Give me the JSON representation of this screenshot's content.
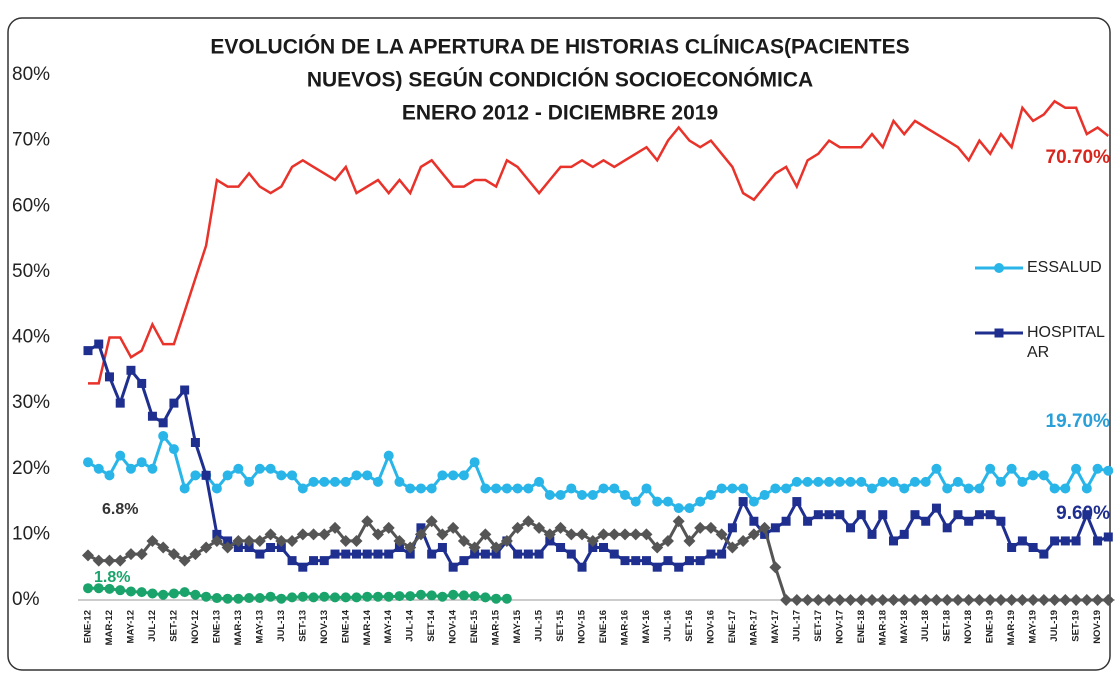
{
  "chart_data": {
    "type": "line",
    "title": [
      "EVOLUCIÓN DE LA APERTURA DE HISTORIAS CLÍNICAS(PACIENTES",
      "NUEVOS) SEGÚN CONDICIÓN SOCIOECONÓMICA",
      "ENERO 2012 -    DICIEMBRE 2019"
    ],
    "categories": [
      "ENE-12",
      null,
      "MAR-12",
      null,
      "MAY-12",
      null,
      "JUL-12",
      null,
      "SET-12",
      null,
      "NOV-12",
      null,
      "ENE-13",
      null,
      "MAR-13",
      null,
      "MAY-13",
      null,
      "JUL-13",
      null,
      "SET-13",
      null,
      "NOV-13",
      null,
      "ENE-14",
      null,
      "MAR-14",
      null,
      "MAY-14",
      null,
      "JUL-14",
      null,
      "SET-14",
      null,
      "NOV-14",
      null,
      "ENE-15",
      null,
      "MAR-15",
      null,
      "MAY-15",
      null,
      "JUL-15",
      null,
      "SET-15",
      null,
      "NOV-15",
      null,
      "ENE-16",
      null,
      "MAR-16",
      null,
      "MAY-16",
      null,
      "JUL-16",
      null,
      "SET-16",
      null,
      "NOV-16",
      null,
      "ENE-17",
      null,
      "MAR-17",
      null,
      "MAY-17",
      null,
      "JUL-17",
      null,
      "SET-17",
      null,
      "NOV-17",
      null,
      "ENE-18",
      null,
      "MAR-18",
      null,
      "MAY-18",
      null,
      "JUL-18",
      null,
      "SET-18",
      null,
      "NOV-18",
      null,
      "ENE-19",
      null,
      "MAR-19",
      null,
      "MAY-19",
      null,
      "JUL-19",
      null,
      "SET-19",
      null,
      "NOV-19",
      null
    ],
    "series": [
      {
        "color": "#e8322a",
        "marker": "none",
        "values": [
          33,
          33,
          40,
          40,
          37,
          38,
          42,
          39,
          39,
          44,
          49,
          54,
          64,
          63,
          63,
          65,
          63,
          62,
          63,
          66,
          67,
          66,
          65,
          64,
          66,
          62,
          63,
          64,
          62,
          64,
          62,
          66,
          67,
          65,
          63,
          63,
          64,
          64,
          63,
          67,
          66,
          64,
          62,
          64,
          66,
          66,
          67,
          66,
          67,
          66,
          67,
          68,
          69,
          67,
          70,
          72,
          70,
          69,
          70,
          68,
          66,
          62,
          61,
          63,
          65,
          66,
          63,
          67,
          68,
          70,
          69,
          69,
          69,
          71,
          69,
          73,
          71,
          73,
          72,
          71,
          70,
          69,
          67,
          70,
          68,
          71,
          69,
          75,
          73,
          74,
          76,
          75,
          75,
          71,
          72,
          70.7
        ]
      },
      {
        "name": "ESSALUD",
        "color": "#29b5e8",
        "marker": "circle",
        "values": [
          21,
          20,
          19,
          22,
          20,
          21,
          20,
          25,
          23,
          17,
          19,
          19,
          17,
          19,
          20,
          18,
          20,
          20,
          19,
          19,
          17,
          18,
          18,
          18,
          18,
          19,
          19,
          18,
          22,
          18,
          17,
          17,
          17,
          19,
          19,
          19,
          21,
          17,
          17,
          17,
          17,
          17,
          18,
          16,
          16,
          17,
          16,
          16,
          17,
          17,
          16,
          15,
          17,
          15,
          15,
          14,
          14,
          15,
          16,
          17,
          17,
          17,
          15,
          16,
          17,
          17,
          18,
          18,
          18,
          18,
          18,
          18,
          18,
          17,
          18,
          18,
          17,
          18,
          18,
          20,
          17,
          18,
          17,
          17,
          20,
          18,
          20,
          18,
          19,
          19,
          17,
          17,
          20,
          17,
          20,
          19.7
        ]
      },
      {
        "name": "HOSPITAL AR",
        "color": "#1f2f8f",
        "marker": "square",
        "values": [
          38,
          39,
          34,
          30,
          35,
          33,
          28,
          27,
          30,
          32,
          24,
          19,
          10,
          9,
          8,
          8,
          7,
          8,
          8,
          6,
          5,
          6,
          6,
          7,
          7,
          7,
          7,
          7,
          7,
          8,
          7,
          11,
          7,
          8,
          5,
          6,
          7,
          7,
          7,
          9,
          7,
          7,
          7,
          9,
          8,
          7,
          5,
          8,
          8,
          7,
          6,
          6,
          6,
          5,
          6,
          5,
          6,
          6,
          7,
          7,
          11,
          15,
          12,
          10,
          11,
          12,
          15,
          12,
          13,
          13,
          13,
          11,
          13,
          10,
          13,
          9,
          10,
          13,
          12,
          14,
          11,
          13,
          12,
          13,
          13,
          12,
          8,
          9,
          8,
          7,
          9,
          9,
          9,
          13,
          9,
          9.6
        ]
      },
      {
        "color": "#555555",
        "marker": "diamond",
        "values": [
          6.8,
          6,
          6,
          6,
          7,
          7,
          9,
          8,
          7,
          6,
          7,
          8,
          9,
          8,
          9,
          9,
          9,
          10,
          9,
          9,
          10,
          10,
          10,
          11,
          9,
          9,
          12,
          10,
          11,
          9,
          8,
          10,
          12,
          10,
          11,
          9,
          8,
          10,
          8,
          9,
          11,
          12,
          11,
          10,
          11,
          10,
          10,
          9,
          10,
          10,
          10,
          10,
          10,
          8,
          9,
          12,
          9,
          11,
          11,
          10,
          8,
          9,
          10,
          11,
          5,
          0,
          0,
          0,
          0,
          0,
          0,
          0,
          0,
          0,
          0,
          0,
          0,
          0,
          0,
          0,
          0,
          0,
          0,
          0,
          0,
          0,
          0,
          0,
          0,
          0,
          0,
          0,
          0,
          0,
          0,
          0
        ]
      },
      {
        "color": "#1aa36b",
        "marker": "circle",
        "values": [
          1.8,
          1.8,
          1.7,
          1.5,
          1.3,
          1.2,
          1,
          0.8,
          1,
          1.2,
          0.8,
          0.5,
          0.3,
          0.2,
          0.2,
          0.3,
          0.3,
          0.5,
          0.2,
          0.4,
          0.5,
          0.4,
          0.5,
          0.4,
          0.4,
          0.4,
          0.5,
          0.5,
          0.5,
          0.6,
          0.6,
          0.8,
          0.7,
          0.5,
          0.8,
          0.7,
          0.6,
          0.4,
          0.2,
          0.2,
          null,
          null,
          null,
          null,
          null,
          null,
          null,
          null,
          null,
          null,
          null,
          null,
          null,
          null,
          null,
          null,
          null,
          null,
          null,
          null,
          null,
          null,
          null,
          null,
          null,
          null,
          null,
          null,
          null,
          null,
          null,
          null,
          null,
          null,
          null,
          null,
          null,
          null,
          null,
          null,
          null,
          null,
          null,
          null,
          null,
          null,
          null,
          null,
          null,
          null,
          null,
          null,
          null,
          null,
          null,
          null
        ]
      }
    ],
    "annotations": [
      "70.70%",
      "19.70%",
      "9.60%",
      "6.8%",
      "1.8%"
    ],
    "ylim": [
      0,
      80
    ],
    "yticks": [
      {
        "value": 0,
        "label": "0%"
      },
      {
        "value": 10,
        "label": "10%"
      },
      {
        "value": 20,
        "label": "20%"
      },
      {
        "value": 30,
        "label": "30%"
      },
      {
        "value": 40,
        "label": "40%"
      },
      {
        "value": 50,
        "label": "50%"
      },
      {
        "value": 60,
        "label": "60%"
      },
      {
        "value": 70,
        "label": "70%"
      },
      {
        "value": 80,
        "label": "80%"
      }
    ],
    "grid": false
  }
}
